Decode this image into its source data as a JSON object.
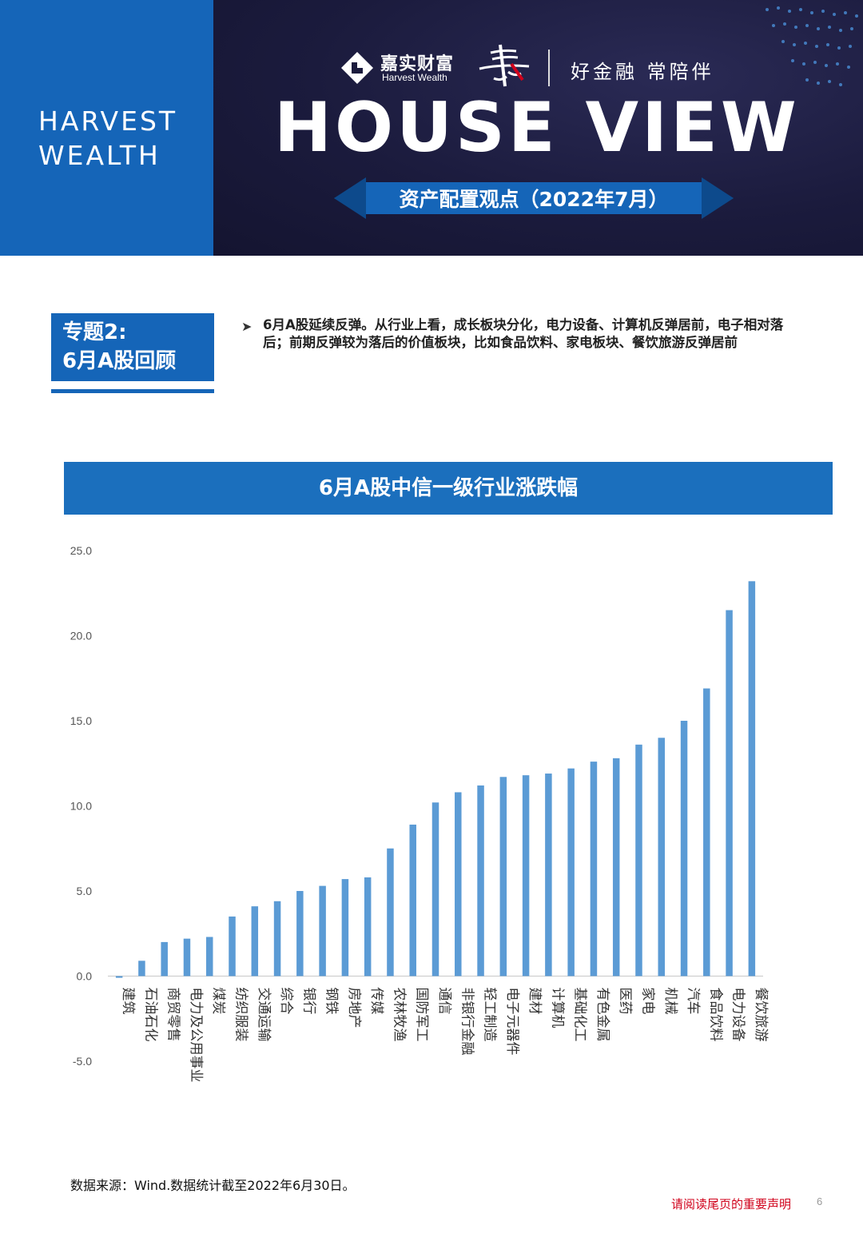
{
  "header": {
    "brand_side": "HARVEST\nWEALTH",
    "brand_line1": "HARVEST",
    "brand_line2": "WEALTH",
    "logo_cn": "嘉实财富",
    "logo_en": "Harvest Wealth",
    "slogan": "好金融  常陪伴",
    "title": "HOUSE VIEW",
    "subtitle": "资产配置观点（2022年7月）",
    "colors": {
      "brand_blue": "#1565b8",
      "dark_bg": "#1b1b3d"
    }
  },
  "topic": {
    "line1": "专题2:",
    "line2": "6月A股回顾",
    "bullet_icon": "arrow-bullet-icon",
    "bullet": "6月A股延续反弹。从行业上看，成长板块分化，电力设备、计算机反弹居前，电子相对落后；前期反弹较为落后的价值板块，比如食品饮料、家电板块、餐饮旅游反弹居前"
  },
  "chart_title": "6月A股中信一级行业涨跌幅",
  "chart_data": {
    "type": "bar",
    "title": "6月A股中信一级行业涨跌幅",
    "categories": [
      "建筑",
      "石油石化",
      "商贸零售",
      "电力及公用事业",
      "煤炭",
      "纺织服装",
      "交通运输",
      "综合",
      "银行",
      "钢铁",
      "房地产",
      "传媒",
      "农林牧渔",
      "国防军工",
      "通信",
      "非银行金融",
      "轻工制造",
      "电子元器件",
      "建材",
      "计算机",
      "基础化工",
      "有色金属",
      "医药",
      "家电",
      "机械",
      "汽车",
      "食品饮料",
      "电力设备",
      "餐饮旅游"
    ],
    "values": [
      -0.1,
      0.9,
      2.0,
      2.2,
      2.3,
      3.5,
      4.1,
      4.4,
      5.0,
      5.3,
      5.7,
      5.8,
      7.5,
      8.9,
      10.2,
      10.8,
      11.2,
      11.7,
      11.8,
      11.9,
      12.2,
      12.6,
      12.8,
      13.6,
      14.0,
      15.0,
      16.9,
      21.5,
      23.2
    ],
    "yticks": [
      "25.0",
      "20.0",
      "15.0",
      "10.0",
      "5.0",
      "0.0",
      "-5.0"
    ],
    "ylim": [
      -5,
      25
    ],
    "color": "#5b9bd5",
    "grid": false
  },
  "footer": {
    "source": "数据来源：Wind.数据统计截至2022年6月30日。",
    "disclaimer": "请阅读尾页的重要声明",
    "page": "6"
  }
}
